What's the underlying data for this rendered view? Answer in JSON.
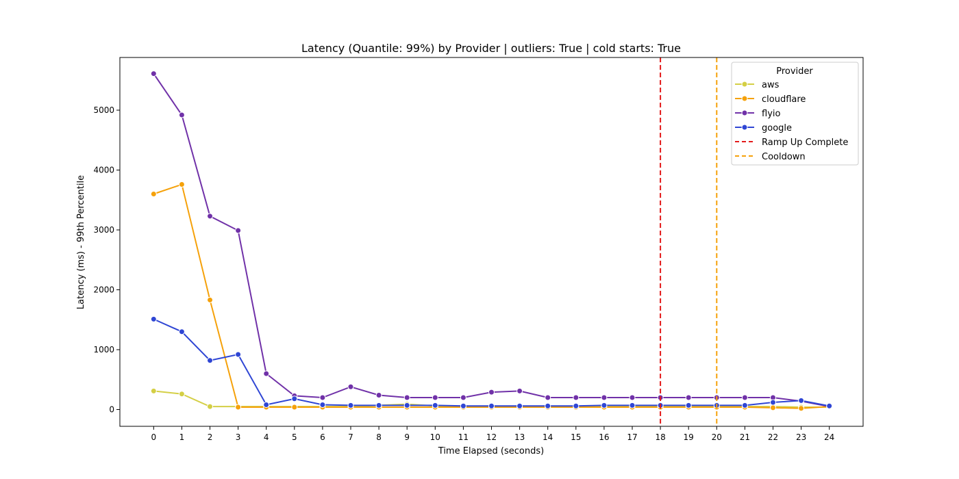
{
  "chart_data": {
    "type": "line",
    "title": "Latency (Quantile: 99%) by Provider | outliers: True | cold starts: True",
    "xlabel": "Time Elapsed (seconds)",
    "ylabel": "Latency (ms) - 99th Percentile",
    "x": [
      0,
      1,
      2,
      3,
      4,
      5,
      6,
      7,
      8,
      9,
      10,
      11,
      12,
      13,
      14,
      15,
      16,
      17,
      18,
      19,
      20,
      21,
      22,
      23,
      24
    ],
    "xlim": [
      -1.2,
      25.2
    ],
    "ylim": [
      -280,
      5880
    ],
    "yticks": [
      0,
      1000,
      2000,
      3000,
      4000,
      5000
    ],
    "grid": false,
    "legend": {
      "title": "Provider",
      "placement": "top-right"
    },
    "series": [
      {
        "name": "aws",
        "color": "#d4cf45",
        "values": [
          310,
          260,
          50,
          50,
          50,
          50,
          50,
          50,
          70,
          90,
          60,
          50,
          50,
          50,
          50,
          50,
          50,
          50,
          50,
          50,
          50,
          50,
          50,
          40,
          40
        ]
      },
      {
        "name": "cloudflare",
        "color": "#f5a10a",
        "values": [
          3600,
          3760,
          1830,
          40,
          40,
          40,
          40,
          40,
          40,
          40,
          40,
          40,
          40,
          40,
          40,
          40,
          40,
          40,
          40,
          40,
          40,
          40,
          30,
          20,
          50
        ]
      },
      {
        "name": "flyio",
        "color": "#7031a8",
        "values": [
          5610,
          4920,
          3230,
          2990,
          600,
          230,
          200,
          380,
          240,
          200,
          200,
          200,
          290,
          310,
          200,
          200,
          200,
          200,
          200,
          200,
          200,
          200,
          200,
          140,
          50
        ]
      },
      {
        "name": "google",
        "color": "#2f46d4",
        "values": [
          1510,
          1300,
          820,
          920,
          80,
          180,
          80,
          70,
          70,
          70,
          70,
          60,
          60,
          60,
          60,
          60,
          70,
          70,
          70,
          70,
          70,
          70,
          120,
          150,
          60
        ]
      }
    ],
    "vlines": [
      {
        "name": "Ramp Up Complete",
        "x": 18,
        "color": "#e31919"
      },
      {
        "name": "Cooldown",
        "x": 20,
        "color": "#f5a10a"
      }
    ]
  }
}
